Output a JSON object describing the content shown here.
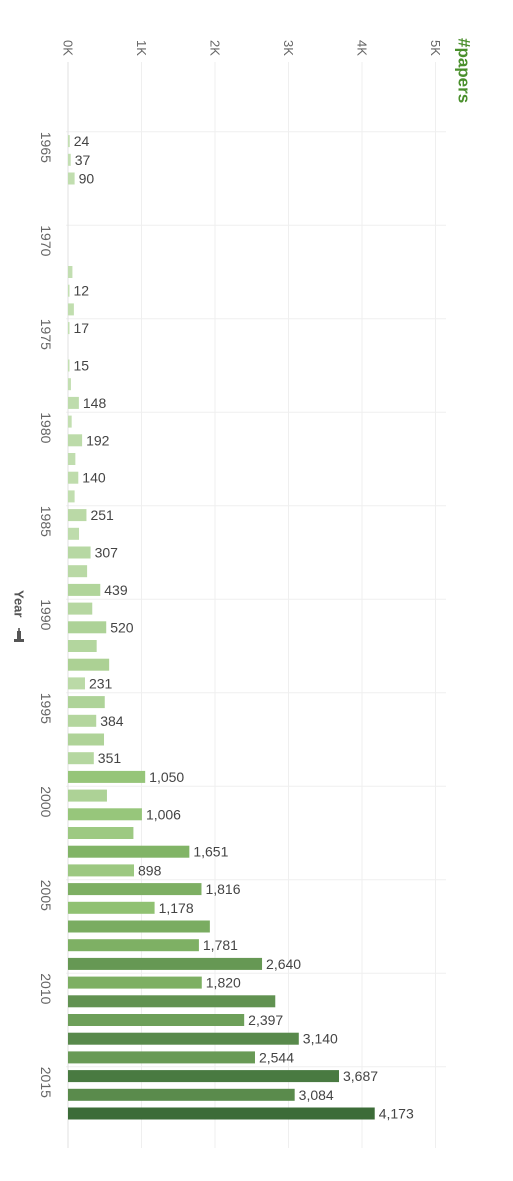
{
  "chart_data": {
    "type": "bar",
    "orientation": "horizontal",
    "title": "",
    "measure_label": "#papers",
    "dimension_label": "Year",
    "dimension_icon": "pin-icon",
    "x_ticks": [
      "0K",
      "1K",
      "2K",
      "3K",
      "4K",
      "5K"
    ],
    "x_tick_values": [
      0,
      1000,
      2000,
      3000,
      4000,
      5000
    ],
    "xlim": [
      0,
      5000
    ],
    "year_ticks": [
      1965,
      1970,
      1975,
      1980,
      1985,
      1990,
      1995,
      2000,
      2005,
      2010,
      2015
    ],
    "grid": true,
    "colors": {
      "light": "#c5e0b4",
      "mid": "#8cbf6d",
      "dark": "#3b6b38",
      "measure_title": "#4a8f2c",
      "grid": "#efefef"
    },
    "data": [
      {
        "year": 1963,
        "value": 0
      },
      {
        "year": 1964,
        "value": 0
      },
      {
        "year": 1965,
        "value": 24,
        "label": "24"
      },
      {
        "year": 1966,
        "value": 37,
        "label": "37"
      },
      {
        "year": 1967,
        "value": 90,
        "label": "90"
      },
      {
        "year": 1968,
        "value": 0
      },
      {
        "year": 1969,
        "value": 0
      },
      {
        "year": 1970,
        "value": 0
      },
      {
        "year": 1971,
        "value": 0
      },
      {
        "year": 1972,
        "value": 60
      },
      {
        "year": 1973,
        "value": 12,
        "label": "12"
      },
      {
        "year": 1974,
        "value": 80
      },
      {
        "year": 1975,
        "value": 17,
        "label": "17"
      },
      {
        "year": 1976,
        "value": 0
      },
      {
        "year": 1977,
        "value": 15,
        "label": "15"
      },
      {
        "year": 1978,
        "value": 40
      },
      {
        "year": 1979,
        "value": 148,
        "label": "148"
      },
      {
        "year": 1980,
        "value": 50
      },
      {
        "year": 1981,
        "value": 192,
        "label": "192"
      },
      {
        "year": 1982,
        "value": 100
      },
      {
        "year": 1983,
        "value": 140,
        "label": "140"
      },
      {
        "year": 1984,
        "value": 90
      },
      {
        "year": 1985,
        "value": 251,
        "label": "251"
      },
      {
        "year": 1986,
        "value": 150
      },
      {
        "year": 1987,
        "value": 307,
        "label": "307"
      },
      {
        "year": 1988,
        "value": 260
      },
      {
        "year": 1989,
        "value": 439,
        "label": "439"
      },
      {
        "year": 1990,
        "value": 330
      },
      {
        "year": 1991,
        "value": 520,
        "label": "520"
      },
      {
        "year": 1992,
        "value": 390
      },
      {
        "year": 1993,
        "value": 560
      },
      {
        "year": 1994,
        "value": 231,
        "label": "231"
      },
      {
        "year": 1995,
        "value": 500
      },
      {
        "year": 1996,
        "value": 384,
        "label": "384"
      },
      {
        "year": 1997,
        "value": 490
      },
      {
        "year": 1998,
        "value": 351,
        "label": "351"
      },
      {
        "year": 1999,
        "value": 1050,
        "label": "1,050"
      },
      {
        "year": 2000,
        "value": 530
      },
      {
        "year": 2001,
        "value": 1006,
        "label": "1,006"
      },
      {
        "year": 2002,
        "value": 890
      },
      {
        "year": 2003,
        "value": 1651,
        "label": "1,651"
      },
      {
        "year": 2004,
        "value": 898,
        "label": "898"
      },
      {
        "year": 2005,
        "value": 1816,
        "label": "1,816"
      },
      {
        "year": 2006,
        "value": 1178,
        "label": "1,178"
      },
      {
        "year": 2007,
        "value": 1930
      },
      {
        "year": 2008,
        "value": 1781,
        "label": "1,781"
      },
      {
        "year": 2009,
        "value": 2640,
        "label": "2,640"
      },
      {
        "year": 2010,
        "value": 1820,
        "label": "1,820"
      },
      {
        "year": 2011,
        "value": 2820
      },
      {
        "year": 2012,
        "value": 2397,
        "label": "2,397"
      },
      {
        "year": 2013,
        "value": 3140,
        "label": "3,140"
      },
      {
        "year": 2014,
        "value": 2544,
        "label": "2,544"
      },
      {
        "year": 2015,
        "value": 3687,
        "label": "3,687"
      },
      {
        "year": 2016,
        "value": 3084,
        "label": "3,084"
      },
      {
        "year": 2017,
        "value": 4173,
        "label": "4,173"
      }
    ]
  }
}
